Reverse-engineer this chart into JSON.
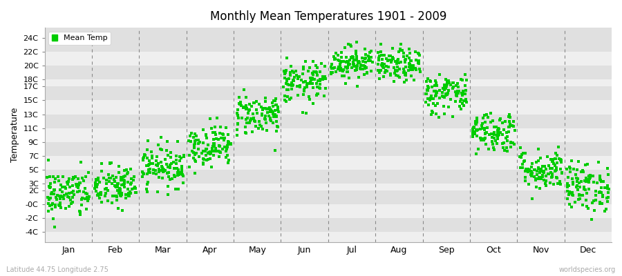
{
  "title": "Monthly Mean Temperatures 1901 - 2009",
  "ylabel": "Temperature",
  "xlabel_labels": [
    "Jan",
    "Feb",
    "Mar",
    "Apr",
    "May",
    "Jun",
    "Jul",
    "Aug",
    "Sep",
    "Oct",
    "Nov",
    "Dec"
  ],
  "ytick_labels": [
    "-4C",
    "-2C",
    "-0C",
    "2C",
    "3C",
    "5C",
    "7C",
    "9C",
    "11C",
    "13C",
    "15C",
    "17C",
    "18C",
    "20C",
    "22C",
    "24C"
  ],
  "ytick_values": [
    -4,
    -2,
    0,
    2,
    3,
    5,
    7,
    9,
    11,
    13,
    15,
    17,
    18,
    20,
    22,
    24
  ],
  "ylim": [
    -5.5,
    25.5
  ],
  "dot_color": "#00CC00",
  "bg_color": "#efefef",
  "stripe_light": "#e8e8e8",
  "stripe_dark": "#d8d8d8",
  "legend_label": "Mean Temp",
  "footer_left": "Latitude 44.75 Longitude 2.75",
  "footer_right": "worldspecies.org",
  "monthly_means": [
    1.5,
    2.5,
    5.5,
    8.5,
    13.0,
    17.5,
    20.5,
    20.0,
    16.0,
    10.5,
    5.0,
    2.5
  ],
  "monthly_stds": [
    1.8,
    1.6,
    1.5,
    1.5,
    1.5,
    1.5,
    1.2,
    1.2,
    1.5,
    1.5,
    1.5,
    1.8
  ],
  "n_years": 109,
  "seed": 42,
  "marker_size": 6
}
